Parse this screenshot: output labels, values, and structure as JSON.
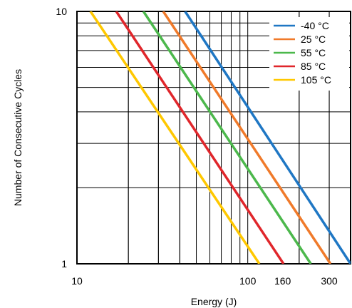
{
  "chart_data": {
    "type": "line",
    "title": "",
    "xlabel": "Energy (J)",
    "ylabel": "Number of Consecutive Cycles",
    "x_scale": "log",
    "y_scale": "log",
    "xlim": [
      10,
      400
    ],
    "ylim": [
      1,
      10
    ],
    "grid": true,
    "legend_position": "top-right",
    "x_ticks": [
      {
        "value": 10,
        "label": "10"
      },
      {
        "value": 100,
        "label": "100"
      },
      {
        "value": 160,
        "label": "160"
      },
      {
        "value": 300,
        "label": "300"
      }
    ],
    "y_ticks": [
      {
        "value": 1,
        "label": "1"
      },
      {
        "value": 10,
        "label": "10"
      }
    ],
    "series": [
      {
        "name": "-40 °C",
        "color": "#1f77c4",
        "x": [
          43,
          400
        ],
        "y": [
          10,
          1
        ]
      },
      {
        "name": "25 °C",
        "color": "#f07a2a",
        "x": [
          32,
          305
        ],
        "y": [
          10,
          1
        ]
      },
      {
        "name": "55 °C",
        "color": "#4cb84c",
        "x": [
          24.5,
          234
        ],
        "y": [
          10,
          1
        ]
      },
      {
        "name": "85 °C",
        "color": "#e0262b",
        "x": [
          17,
          162
        ],
        "y": [
          10,
          1
        ]
      },
      {
        "name": "105 °C",
        "color": "#ffc800",
        "x": [
          12,
          117
        ],
        "y": [
          10,
          1
        ]
      }
    ]
  }
}
